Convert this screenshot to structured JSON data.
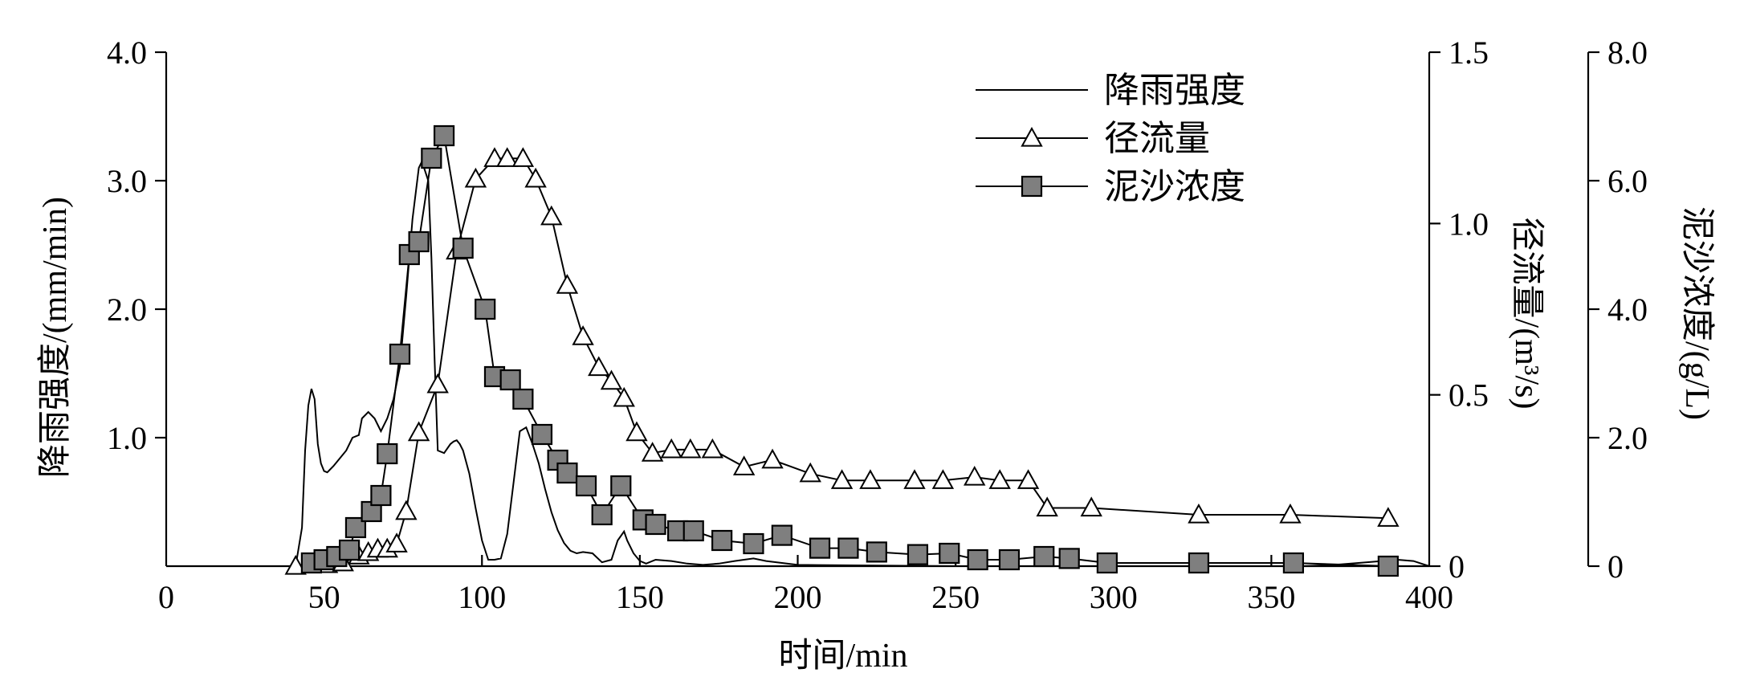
{
  "chart_data": {
    "type": "line",
    "title": "",
    "xlabel": "时间/min",
    "xlim": [
      0,
      400
    ],
    "xticks": [
      "0",
      "50",
      "100",
      "150",
      "200",
      "250",
      "300",
      "350",
      "400"
    ],
    "axes": {
      "left": {
        "label": "降雨强度/(mm/min)",
        "ylim": [
          0,
          4
        ],
        "ticks": [
          "1.0",
          "2.0",
          "3.0",
          "4.0"
        ]
      },
      "right1": {
        "label": "径流量/(m³/s)",
        "ylim": [
          0,
          1.5
        ],
        "ticks": [
          "0",
          "0.5",
          "1.0",
          "1.5"
        ]
      },
      "right2": {
        "label": "泥沙浓度/(g/L)",
        "ylim": [
          0,
          8
        ],
        "ticks": [
          "0",
          "2.0",
          "4.0",
          "6.0",
          "8.0"
        ]
      }
    },
    "legend_position": "top-right",
    "series": [
      {
        "name": "降雨强度",
        "axis": "left",
        "marker": "none",
        "x": [
          38,
          41,
          43,
          44,
          45,
          46,
          47,
          48,
          49,
          50,
          51,
          53,
          55,
          57,
          59,
          61,
          62,
          64,
          66,
          68,
          70,
          72,
          74,
          76,
          78,
          80,
          81,
          83,
          84,
          85,
          86,
          88,
          90,
          91,
          92,
          93,
          94,
          96,
          98,
          100,
          102,
          104,
          106,
          108,
          110,
          112,
          114,
          116,
          118,
          120,
          122,
          124,
          126,
          128,
          130,
          132,
          135,
          138,
          141,
          143,
          145,
          146,
          148,
          150,
          152,
          155,
          160,
          165,
          170,
          175,
          180,
          183,
          186,
          190,
          200,
          250,
          300,
          340,
          350,
          360,
          370,
          380,
          390,
          395,
          400
        ],
        "y": [
          0,
          0,
          0.3,
          0.9,
          1.25,
          1.38,
          1.3,
          0.95,
          0.8,
          0.74,
          0.73,
          0.78,
          0.84,
          0.9,
          1.0,
          1.02,
          1.15,
          1.2,
          1.15,
          1.05,
          1.15,
          1.3,
          1.55,
          2.1,
          2.7,
          3.1,
          3.15,
          3.0,
          2.4,
          1.6,
          0.9,
          0.88,
          0.95,
          0.97,
          0.98,
          0.95,
          0.9,
          0.72,
          0.45,
          0.2,
          0.05,
          0.05,
          0.06,
          0.25,
          0.65,
          1.05,
          1.08,
          0.95,
          0.8,
          0.6,
          0.42,
          0.28,
          0.18,
          0.12,
          0.1,
          0.11,
          0.1,
          0.03,
          0.05,
          0.2,
          0.27,
          0.2,
          0.1,
          0.04,
          0.02,
          0.05,
          0.04,
          0.02,
          0.01,
          0.02,
          0.04,
          0.05,
          0.06,
          0.04,
          0.01,
          0,
          0,
          0,
          0,
          0,
          0.01,
          0.03,
          0.05,
          0.04,
          0
        ]
      },
      {
        "name": "径流量",
        "axis": "right1",
        "marker": "triangle-open",
        "x": [
          41,
          47,
          51,
          56,
          61,
          64,
          67,
          70,
          73,
          76,
          80,
          86,
          92,
          98,
          104,
          108,
          113,
          117,
          122,
          127,
          132,
          137,
          141,
          145,
          149,
          154,
          160,
          166,
          173,
          183,
          192,
          204,
          214,
          223,
          237,
          246,
          256,
          264,
          273,
          279,
          293,
          327,
          356,
          387
        ],
        "y": [
          0,
          0.005,
          0.005,
          0.01,
          0.03,
          0.04,
          0.05,
          0.05,
          0.065,
          0.16,
          0.39,
          0.53,
          0.92,
          1.13,
          1.19,
          1.19,
          1.19,
          1.13,
          1.02,
          0.82,
          0.67,
          0.58,
          0.54,
          0.49,
          0.39,
          0.33,
          0.34,
          0.34,
          0.34,
          0.29,
          0.31,
          0.27,
          0.25,
          0.25,
          0.25,
          0.25,
          0.26,
          0.25,
          0.25,
          0.17,
          0.17,
          0.15,
          0.15,
          0.14
        ]
      },
      {
        "name": "泥沙浓度",
        "axis": "right2",
        "marker": "square-filled",
        "x": [
          46,
          50,
          54,
          58,
          60,
          65,
          68,
          70,
          74,
          77,
          80,
          84,
          88,
          94,
          101,
          104,
          109,
          113,
          119,
          124,
          127,
          133,
          138,
          144,
          151,
          155,
          162,
          167,
          176,
          186,
          195,
          207,
          216,
          225,
          238,
          248,
          257,
          267,
          278,
          286,
          298,
          327,
          357,
          387
        ],
        "y": [
          0.05,
          0.1,
          0.15,
          0.25,
          0.6,
          0.85,
          1.1,
          1.75,
          3.3,
          4.85,
          5.05,
          6.35,
          6.7,
          4.95,
          4.0,
          2.95,
          2.9,
          2.6,
          2.05,
          1.65,
          1.45,
          1.25,
          0.8,
          1.25,
          0.72,
          0.65,
          0.55,
          0.55,
          0.4,
          0.35,
          0.48,
          0.28,
          0.28,
          0.22,
          0.18,
          0.2,
          0.1,
          0.1,
          0.15,
          0.12,
          0.05,
          0.05,
          0.05,
          0.0
        ]
      }
    ]
  }
}
